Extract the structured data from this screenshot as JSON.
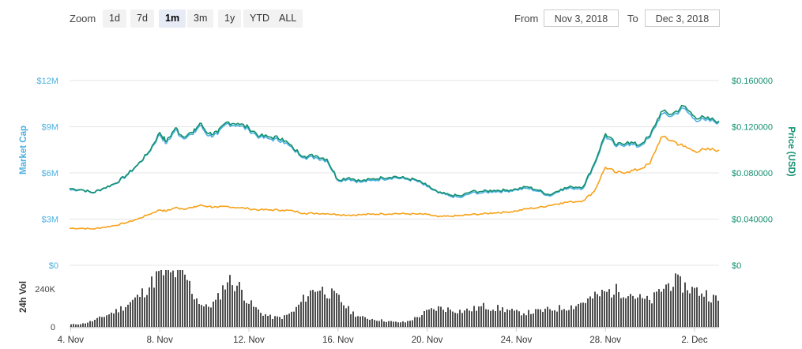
{
  "toolbar": {
    "zoom_label": "Zoom",
    "zoom_buttons": [
      "1d",
      "7d",
      "1m",
      "3m",
      "1y",
      "YTD",
      "ALL"
    ],
    "active_zoom": "1m",
    "from_label": "From",
    "from_value": "Nov 3, 2018",
    "to_label": "To",
    "to_value": "Dec 3, 2018"
  },
  "colors": {
    "market_cap": "#4cb0e0",
    "price_usd": "#13906f",
    "price_alt": "#f7a21a",
    "volume": "#4d4d4d",
    "grid": "#e6e6e6"
  },
  "chart_data": [
    {
      "type": "line",
      "x_ticks": [
        "4. Nov",
        "8. Nov",
        "12. Nov",
        "16. Nov",
        "20. Nov",
        "24. Nov",
        "28. Nov",
        "2. Dec"
      ],
      "x_tick_days": [
        1,
        5,
        9,
        13,
        17,
        21,
        25,
        29
      ],
      "x_range_days": [
        0.95,
        30.1
      ],
      "left_axis": {
        "label": "Market Cap",
        "ticks": [
          "$0",
          "$3M",
          "$6M",
          "$9M",
          "$12M"
        ],
        "range": [
          0,
          12000000
        ]
      },
      "right_axis": {
        "label": "Price (USD)",
        "ticks": [
          "$0",
          "$0.040000",
          "$0.080000",
          "$0.120000",
          "$0.160000"
        ],
        "range": [
          0,
          0.16
        ]
      },
      "grid": true,
      "series": [
        {
          "axis": "left",
          "color": "#4cb0e0",
          "points": [
            [
              0.95,
              4.9
            ],
            [
              1.5,
              4.9
            ],
            [
              2.0,
              4.7
            ],
            [
              2.5,
              5.0
            ],
            [
              3.0,
              5.3
            ],
            [
              3.5,
              5.8
            ],
            [
              4.0,
              6.5
            ],
            [
              4.5,
              7.3
            ],
            [
              5.0,
              8.5
            ],
            [
              5.3,
              7.9
            ],
            [
              5.7,
              8.8
            ],
            [
              6.0,
              8.3
            ],
            [
              6.5,
              8.5
            ],
            [
              6.8,
              9.1
            ],
            [
              7.2,
              8.4
            ],
            [
              7.6,
              8.5
            ],
            [
              8.0,
              9.2
            ],
            [
              8.5,
              9.1
            ],
            [
              9.0,
              8.8
            ],
            [
              9.5,
              8.3
            ],
            [
              10.0,
              8.2
            ],
            [
              10.5,
              8.1
            ],
            [
              11.0,
              7.5
            ],
            [
              11.5,
              7.0
            ],
            [
              12.0,
              7.0
            ],
            [
              12.5,
              6.8
            ],
            [
              13.0,
              5.5
            ],
            [
              13.5,
              5.6
            ],
            [
              14.0,
              5.4
            ],
            [
              14.5,
              5.5
            ],
            [
              15.0,
              5.6
            ],
            [
              15.5,
              5.7
            ],
            [
              16.0,
              5.6
            ],
            [
              16.5,
              5.5
            ],
            [
              17.0,
              5.1
            ],
            [
              17.5,
              4.7
            ],
            [
              18.0,
              4.5
            ],
            [
              18.5,
              4.4
            ],
            [
              19.0,
              4.7
            ],
            [
              19.5,
              4.7
            ],
            [
              20.0,
              4.8
            ],
            [
              20.5,
              4.8
            ],
            [
              21.0,
              4.9
            ],
            [
              21.5,
              5.0
            ],
            [
              22.0,
              4.8
            ],
            [
              22.5,
              4.5
            ],
            [
              23.0,
              4.9
            ],
            [
              23.5,
              5.0
            ],
            [
              24.0,
              5.0
            ],
            [
              24.5,
              6.5
            ],
            [
              25.0,
              8.4
            ],
            [
              25.5,
              7.7
            ],
            [
              26.0,
              7.9
            ],
            [
              26.5,
              7.7
            ],
            [
              27.0,
              8.3
            ],
            [
              27.5,
              9.8
            ],
            [
              28.0,
              9.7
            ],
            [
              28.5,
              10.2
            ],
            [
              29.0,
              9.5
            ],
            [
              29.5,
              9.4
            ],
            [
              30.1,
              9.3
            ]
          ]
        },
        {
          "axis": "right",
          "color": "#13906f",
          "points": [
            [
              0.95,
              0.0665
            ],
            [
              1.5,
              0.0655
            ],
            [
              2.0,
              0.063
            ],
            [
              2.5,
              0.067
            ],
            [
              3.0,
              0.071
            ],
            [
              3.5,
              0.078
            ],
            [
              4.0,
              0.087
            ],
            [
              4.5,
              0.098
            ],
            [
              5.0,
              0.115
            ],
            [
              5.3,
              0.107
            ],
            [
              5.7,
              0.119
            ],
            [
              6.0,
              0.112
            ],
            [
              6.5,
              0.115
            ],
            [
              6.8,
              0.123
            ],
            [
              7.2,
              0.114
            ],
            [
              7.6,
              0.115
            ],
            [
              8.0,
              0.124
            ],
            [
              8.5,
              0.123
            ],
            [
              9.0,
              0.119
            ],
            [
              9.5,
              0.112
            ],
            [
              10.0,
              0.111
            ],
            [
              10.5,
              0.11
            ],
            [
              11.0,
              0.101
            ],
            [
              11.5,
              0.0945
            ],
            [
              12.0,
              0.095
            ],
            [
              12.5,
              0.092
            ],
            [
              13.0,
              0.074
            ],
            [
              13.5,
              0.076
            ],
            [
              14.0,
              0.073
            ],
            [
              14.5,
              0.0745
            ],
            [
              15.0,
              0.076
            ],
            [
              15.5,
              0.077
            ],
            [
              16.0,
              0.0755
            ],
            [
              16.5,
              0.074
            ],
            [
              17.0,
              0.069
            ],
            [
              17.5,
              0.063
            ],
            [
              18.0,
              0.061
            ],
            [
              18.5,
              0.06
            ],
            [
              19.0,
              0.064
            ],
            [
              19.5,
              0.064
            ],
            [
              20.0,
              0.065
            ],
            [
              20.5,
              0.065
            ],
            [
              21.0,
              0.066
            ],
            [
              21.5,
              0.068
            ],
            [
              22.0,
              0.065
            ],
            [
              22.5,
              0.061
            ],
            [
              23.0,
              0.066
            ],
            [
              23.5,
              0.068
            ],
            [
              24.0,
              0.068
            ],
            [
              24.5,
              0.088
            ],
            [
              25.0,
              0.114
            ],
            [
              25.5,
              0.104
            ],
            [
              26.0,
              0.107
            ],
            [
              26.5,
              0.104
            ],
            [
              27.0,
              0.112
            ],
            [
              27.5,
              0.133
            ],
            [
              28.0,
              0.131
            ],
            [
              28.5,
              0.138
            ],
            [
              29.0,
              0.129
            ],
            [
              29.5,
              0.127
            ],
            [
              30.1,
              0.125
            ]
          ]
        },
        {
          "axis": "right",
          "color": "#f7a21a",
          "points": [
            [
              0.95,
              0.032
            ],
            [
              1.5,
              0.032
            ],
            [
              2.0,
              0.0315
            ],
            [
              2.5,
              0.033
            ],
            [
              3.0,
              0.0345
            ],
            [
              3.5,
              0.037
            ],
            [
              4.0,
              0.04
            ],
            [
              4.5,
              0.044
            ],
            [
              5.0,
              0.048
            ],
            [
              5.3,
              0.047
            ],
            [
              5.7,
              0.05
            ],
            [
              6.0,
              0.049
            ],
            [
              6.5,
              0.05
            ],
            [
              6.8,
              0.052
            ],
            [
              7.2,
              0.051
            ],
            [
              7.6,
              0.05
            ],
            [
              8.0,
              0.051
            ],
            [
              8.5,
              0.05
            ],
            [
              9.0,
              0.049
            ],
            [
              9.5,
              0.048
            ],
            [
              10.0,
              0.048
            ],
            [
              10.5,
              0.0478
            ],
            [
              11.0,
              0.047
            ],
            [
              11.5,
              0.045
            ],
            [
              12.0,
              0.045
            ],
            [
              12.5,
              0.0448
            ],
            [
              13.0,
              0.044
            ],
            [
              13.5,
              0.0435
            ],
            [
              14.0,
              0.0438
            ],
            [
              14.5,
              0.0442
            ],
            [
              15.0,
              0.0446
            ],
            [
              15.5,
              0.0448
            ],
            [
              16.0,
              0.0446
            ],
            [
              16.5,
              0.0444
            ],
            [
              17.0,
              0.044
            ],
            [
              17.5,
              0.042
            ],
            [
              18.0,
              0.0425
            ],
            [
              18.5,
              0.043
            ],
            [
              19.0,
              0.044
            ],
            [
              19.5,
              0.0445
            ],
            [
              20.0,
              0.0455
            ],
            [
              20.5,
              0.046
            ],
            [
              21.0,
              0.047
            ],
            [
              21.5,
              0.049
            ],
            [
              22.0,
              0.05
            ],
            [
              22.5,
              0.052
            ],
            [
              23.0,
              0.054
            ],
            [
              23.5,
              0.055
            ],
            [
              24.0,
              0.056
            ],
            [
              24.5,
              0.064
            ],
            [
              25.0,
              0.085
            ],
            [
              25.5,
              0.08
            ],
            [
              26.0,
              0.081
            ],
            [
              26.5,
              0.083
            ],
            [
              27.0,
              0.088
            ],
            [
              27.5,
              0.111
            ],
            [
              28.0,
              0.108
            ],
            [
              28.5,
              0.103
            ],
            [
              29.0,
              0.099
            ],
            [
              29.5,
              0.1
            ],
            [
              30.1,
              0.1
            ]
          ]
        }
      ]
    },
    {
      "type": "area",
      "ylabel": "24h Vol",
      "y_ticks": [
        "0",
        "240K"
      ],
      "y_range": [
        0,
        360000
      ],
      "series": [
        {
          "color": "#4d4d4d",
          "points": [
            [
              0.95,
              15000
            ],
            [
              1.5,
              20000
            ],
            [
              2.0,
              40000
            ],
            [
              2.5,
              70000
            ],
            [
              3.0,
              100000
            ],
            [
              3.5,
              140000
            ],
            [
              4.0,
              190000
            ],
            [
              4.5,
              260000
            ],
            [
              5.0,
              350000
            ],
            [
              5.5,
              330000
            ],
            [
              5.8,
              350000
            ],
            [
              6.2,
              300000
            ],
            [
              6.5,
              200000
            ],
            [
              7.0,
              120000
            ],
            [
              7.5,
              160000
            ],
            [
              8.0,
              300000
            ],
            [
              8.5,
              260000
            ],
            [
              9.0,
              150000
            ],
            [
              9.5,
              90000
            ],
            [
              10.0,
              60000
            ],
            [
              10.5,
              60000
            ],
            [
              11.0,
              100000
            ],
            [
              11.5,
              190000
            ],
            [
              12.0,
              250000
            ],
            [
              12.5,
              220000
            ],
            [
              13.0,
              180000
            ],
            [
              13.5,
              100000
            ],
            [
              14.0,
              60000
            ],
            [
              14.5,
              50000
            ],
            [
              15.0,
              40000
            ],
            [
              15.5,
              30000
            ],
            [
              16.0,
              30000
            ],
            [
              16.5,
              60000
            ],
            [
              17.0,
              100000
            ],
            [
              17.5,
              120000
            ],
            [
              18.0,
              110000
            ],
            [
              18.5,
              100000
            ],
            [
              19.0,
              110000
            ],
            [
              19.5,
              130000
            ],
            [
              20.0,
              120000
            ],
            [
              20.5,
              110000
            ],
            [
              21.0,
              90000
            ],
            [
              21.5,
              90000
            ],
            [
              22.0,
              100000
            ],
            [
              22.5,
              110000
            ],
            [
              23.0,
              120000
            ],
            [
              23.5,
              130000
            ],
            [
              24.0,
              160000
            ],
            [
              24.5,
              190000
            ],
            [
              25.0,
              220000
            ],
            [
              25.5,
              230000
            ],
            [
              26.0,
              220000
            ],
            [
              26.5,
              180000
            ],
            [
              27.0,
              160000
            ],
            [
              27.5,
              240000
            ],
            [
              28.0,
              290000
            ],
            [
              28.5,
              260000
            ],
            [
              29.0,
              230000
            ],
            [
              29.5,
              210000
            ],
            [
              30.1,
              160000
            ]
          ]
        }
      ]
    }
  ]
}
